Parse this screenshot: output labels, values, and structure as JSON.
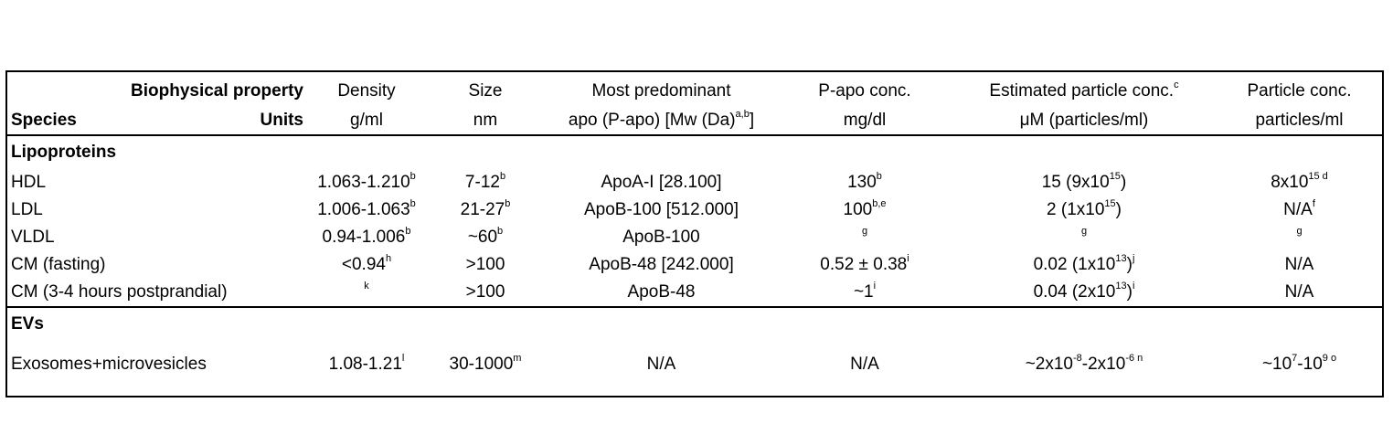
{
  "header": {
    "row1": {
      "property_label": "Biophysical property",
      "cols": [
        [
          {
            "t": "Density"
          }
        ],
        [
          {
            "t": "Size"
          }
        ],
        [
          {
            "t": "Most predominant"
          }
        ],
        [
          {
            "t": "P-apo conc."
          }
        ],
        [
          {
            "t": "Estimated particle conc."
          },
          {
            "s": "c"
          }
        ],
        [
          {
            "t": "Particle conc."
          }
        ]
      ]
    },
    "row2": {
      "species_label": "Species",
      "units_label": "Units",
      "cols": [
        [
          {
            "t": "g/ml"
          }
        ],
        [
          {
            "t": "nm"
          }
        ],
        [
          {
            "t": "apo (P-apo) [Mw (Da)"
          },
          {
            "s": "a,b"
          },
          {
            "t": "]"
          }
        ],
        [
          {
            "t": "mg/dl"
          }
        ],
        [
          {
            "t": "μM (particles/ml)"
          }
        ],
        [
          {
            "t": "particles/ml"
          }
        ]
      ]
    }
  },
  "sections": [
    {
      "title": "Lipoproteins",
      "rows": [
        {
          "species": "HDL",
          "cells": [
            [
              {
                "t": "1.063-1.210"
              },
              {
                "s": "b"
              }
            ],
            [
              {
                "t": "7-12"
              },
              {
                "s": "b"
              }
            ],
            [
              {
                "t": "ApoA-I [28.100]"
              }
            ],
            [
              {
                "t": "130"
              },
              {
                "s": "b"
              }
            ],
            [
              {
                "t": "15 (9x10"
              },
              {
                "s": "15"
              },
              {
                "t": ")"
              }
            ],
            [
              {
                "t": "8x10"
              },
              {
                "s": "15 d"
              }
            ]
          ]
        },
        {
          "species": "LDL",
          "cells": [
            [
              {
                "t": "1.006-1.063"
              },
              {
                "s": "b"
              }
            ],
            [
              {
                "t": "21-27"
              },
              {
                "s": "b"
              }
            ],
            [
              {
                "t": "ApoB-100 [512.000]"
              }
            ],
            [
              {
                "t": "100"
              },
              {
                "s": "b,e"
              }
            ],
            [
              {
                "t": "2 (1x10"
              },
              {
                "s": "15"
              },
              {
                "t": ")"
              }
            ],
            [
              {
                "t": "N/A"
              },
              {
                "s": "f"
              }
            ]
          ]
        },
        {
          "species": "VLDL",
          "cells": [
            [
              {
                "t": "0.94-1.006"
              },
              {
                "s": "b"
              }
            ],
            [
              {
                "t": "~60"
              },
              {
                "s": "b"
              }
            ],
            [
              {
                "t": "ApoB-100"
              }
            ],
            [
              {
                "s": "g"
              }
            ],
            [
              {
                "s": "g"
              }
            ],
            [
              {
                "s": "g"
              }
            ]
          ]
        },
        {
          "species": "CM (fasting)",
          "cells": [
            [
              {
                "t": "<0.94"
              },
              {
                "s": "h"
              }
            ],
            [
              {
                "t": ">100"
              }
            ],
            [
              {
                "t": "ApoB-48 [242.000]"
              }
            ],
            [
              {
                "t": "0.52 ± 0.38"
              },
              {
                "s": "i"
              }
            ],
            [
              {
                "t": "0.02 (1x10"
              },
              {
                "s": "13"
              },
              {
                "t": ")"
              },
              {
                "s": "j"
              }
            ],
            [
              {
                "t": "N/A"
              }
            ]
          ]
        },
        {
          "species": "CM (3-4 hours postprandial)",
          "cells": [
            [
              {
                "s": "k"
              }
            ],
            [
              {
                "t": ">100"
              }
            ],
            [
              {
                "t": "ApoB-48"
              }
            ],
            [
              {
                "t": "~1"
              },
              {
                "s": "i"
              }
            ],
            [
              {
                "t": "0.04 (2x10"
              },
              {
                "s": "13"
              },
              {
                "t": ")"
              },
              {
                "s": "i"
              }
            ],
            [
              {
                "t": "N/A"
              }
            ]
          ]
        }
      ]
    },
    {
      "title": "EVs",
      "rows": [
        {
          "species": "Exosomes+microvesicles",
          "cells": [
            [
              {
                "t": "1.08-1.21"
              },
              {
                "s": "l"
              }
            ],
            [
              {
                "t": "30-1000"
              },
              {
                "s": "m"
              }
            ],
            [
              {
                "t": "N/A"
              }
            ],
            [
              {
                "t": "N/A"
              }
            ],
            [
              {
                "t": "~2x10"
              },
              {
                "s": "-8"
              },
              {
                "t": "-2x10"
              },
              {
                "s": "-6 n"
              }
            ],
            [
              {
                "t": "~10"
              },
              {
                "s": "7"
              },
              {
                "t": "-10"
              },
              {
                "s": "9 o"
              }
            ]
          ]
        }
      ]
    }
  ]
}
